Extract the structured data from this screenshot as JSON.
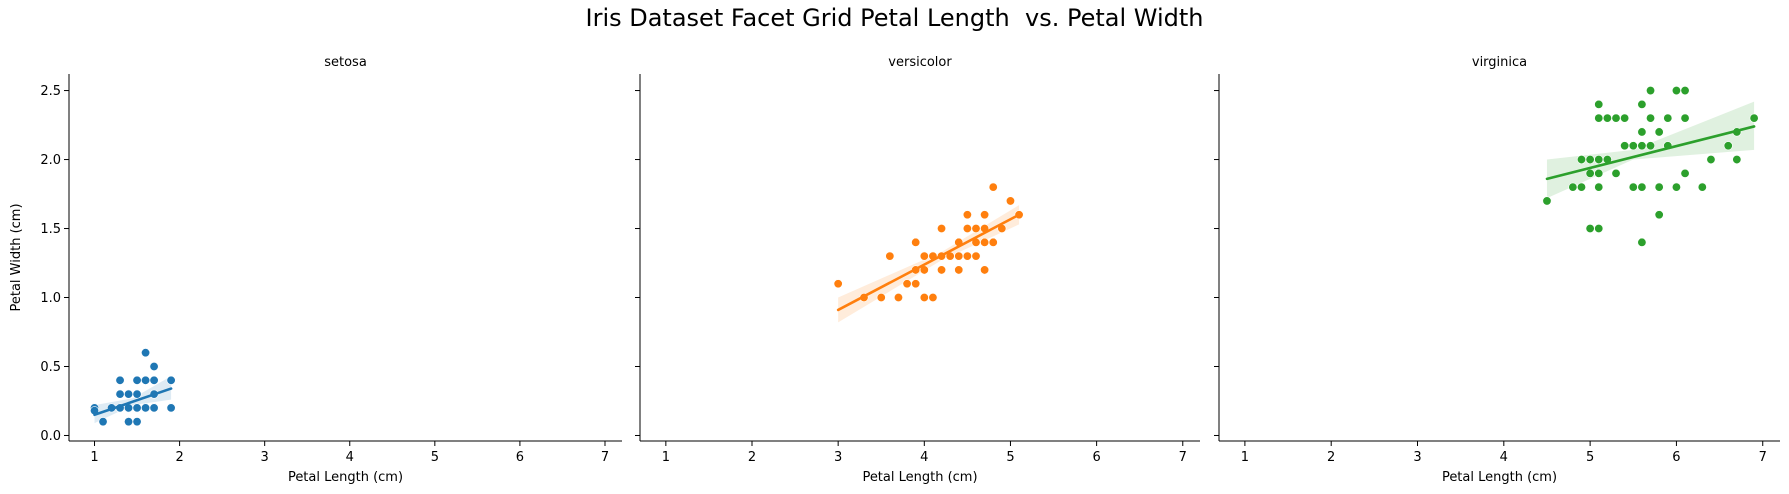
{
  "suptitle": "Iris Dataset Facet Grid Petal Length  vs. Petal Width",
  "chart_data": {
    "type": "scatter",
    "title": "Iris Dataset Facet Grid Petal Length  vs. Petal Width",
    "xlabel": "Petal Length (cm)",
    "ylabel": "Petal Width (cm)",
    "xlim": [
      0.7,
      7.2
    ],
    "ylim": [
      -0.04,
      2.62
    ],
    "x_ticks": [
      1,
      2,
      3,
      4,
      5,
      6,
      7
    ],
    "y_ticks": [
      0.0,
      0.5,
      1.0,
      1.5,
      2.0,
      2.5
    ],
    "x_tick_labels": [
      "1",
      "2",
      "3",
      "4",
      "5",
      "6",
      "7"
    ],
    "y_tick_labels": [
      "0.0",
      "0.5",
      "1.0",
      "1.5",
      "2.0",
      "2.5"
    ],
    "grid": false,
    "legend": "none",
    "facets": [
      {
        "name": "setosa",
        "color": "#1f77b4",
        "points": [
          [
            1.0,
            0.2
          ],
          [
            1.0,
            0.18
          ],
          [
            1.1,
            0.1
          ],
          [
            1.2,
            0.2
          ],
          [
            1.3,
            0.2
          ],
          [
            1.3,
            0.3
          ],
          [
            1.3,
            0.4
          ],
          [
            1.4,
            0.2
          ],
          [
            1.4,
            0.3
          ],
          [
            1.4,
            0.1
          ],
          [
            1.5,
            0.2
          ],
          [
            1.5,
            0.3
          ],
          [
            1.5,
            0.4
          ],
          [
            1.5,
            0.1
          ],
          [
            1.6,
            0.2
          ],
          [
            1.6,
            0.4
          ],
          [
            1.6,
            0.6
          ],
          [
            1.7,
            0.2
          ],
          [
            1.7,
            0.3
          ],
          [
            1.7,
            0.4
          ],
          [
            1.7,
            0.5
          ],
          [
            1.9,
            0.2
          ],
          [
            1.9,
            0.4
          ]
        ],
        "regression": {
          "x0": 1.0,
          "y0": 0.15,
          "x1": 1.9,
          "y1": 0.34
        },
        "ci_band": [
          [
            1.0,
            0.09,
            0.22
          ],
          [
            1.45,
            0.22,
            0.27
          ],
          [
            1.9,
            0.26,
            0.43
          ]
        ]
      },
      {
        "name": "versicolor",
        "color": "#ff7f0e",
        "points": [
          [
            3.0,
            1.1
          ],
          [
            3.3,
            1.0
          ],
          [
            3.5,
            1.0
          ],
          [
            3.6,
            1.3
          ],
          [
            3.7,
            1.0
          ],
          [
            3.8,
            1.1
          ],
          [
            3.9,
            1.1
          ],
          [
            3.9,
            1.2
          ],
          [
            3.9,
            1.4
          ],
          [
            4.0,
            1.0
          ],
          [
            4.0,
            1.2
          ],
          [
            4.0,
            1.3
          ],
          [
            4.1,
            1.0
          ],
          [
            4.1,
            1.3
          ],
          [
            4.2,
            1.2
          ],
          [
            4.2,
            1.3
          ],
          [
            4.2,
            1.5
          ],
          [
            4.3,
            1.3
          ],
          [
            4.4,
            1.2
          ],
          [
            4.4,
            1.3
          ],
          [
            4.4,
            1.4
          ],
          [
            4.5,
            1.3
          ],
          [
            4.5,
            1.5
          ],
          [
            4.5,
            1.6
          ],
          [
            4.6,
            1.3
          ],
          [
            4.6,
            1.4
          ],
          [
            4.6,
            1.5
          ],
          [
            4.7,
            1.2
          ],
          [
            4.7,
            1.4
          ],
          [
            4.7,
            1.5
          ],
          [
            4.7,
            1.6
          ],
          [
            4.8,
            1.4
          ],
          [
            4.8,
            1.8
          ],
          [
            4.9,
            1.5
          ],
          [
            5.0,
            1.7
          ],
          [
            5.1,
            1.6
          ]
        ],
        "regression": {
          "x0": 3.0,
          "y0": 0.91,
          "x1": 5.1,
          "y1": 1.6
        },
        "ci_band": [
          [
            3.0,
            0.82,
            1.0
          ],
          [
            4.2,
            1.27,
            1.33
          ],
          [
            5.1,
            1.53,
            1.67
          ]
        ]
      },
      {
        "name": "virginica",
        "color": "#2ca02c",
        "points": [
          [
            4.5,
            1.7
          ],
          [
            4.8,
            1.8
          ],
          [
            4.9,
            1.8
          ],
          [
            4.9,
            2.0
          ],
          [
            5.0,
            1.5
          ],
          [
            5.0,
            1.9
          ],
          [
            5.0,
            2.0
          ],
          [
            5.1,
            1.5
          ],
          [
            5.1,
            1.8
          ],
          [
            5.1,
            1.9
          ],
          [
            5.1,
            2.0
          ],
          [
            5.1,
            2.3
          ],
          [
            5.1,
            2.4
          ],
          [
            5.2,
            2.0
          ],
          [
            5.2,
            2.3
          ],
          [
            5.3,
            1.9
          ],
          [
            5.3,
            2.3
          ],
          [
            5.4,
            2.1
          ],
          [
            5.4,
            2.3
          ],
          [
            5.5,
            1.8
          ],
          [
            5.5,
            2.1
          ],
          [
            5.6,
            1.4
          ],
          [
            5.6,
            1.8
          ],
          [
            5.6,
            2.1
          ],
          [
            5.6,
            2.2
          ],
          [
            5.6,
            2.4
          ],
          [
            5.7,
            2.1
          ],
          [
            5.7,
            2.3
          ],
          [
            5.7,
            2.5
          ],
          [
            5.8,
            1.6
          ],
          [
            5.8,
            1.8
          ],
          [
            5.8,
            2.2
          ],
          [
            5.9,
            2.1
          ],
          [
            5.9,
            2.3
          ],
          [
            6.0,
            1.8
          ],
          [
            6.0,
            2.5
          ],
          [
            6.1,
            1.9
          ],
          [
            6.1,
            2.3
          ],
          [
            6.1,
            2.5
          ],
          [
            6.3,
            1.8
          ],
          [
            6.4,
            2.0
          ],
          [
            6.6,
            2.1
          ],
          [
            6.7,
            2.0
          ],
          [
            6.7,
            2.2
          ],
          [
            6.9,
            2.3
          ]
        ],
        "regression": {
          "x0": 4.5,
          "y0": 1.86,
          "x1": 6.9,
          "y1": 2.24
        },
        "ci_band": [
          [
            4.5,
            1.72,
            2.0
          ],
          [
            5.5,
            2.0,
            2.07
          ],
          [
            6.9,
            2.07,
            2.42
          ]
        ]
      }
    ]
  }
}
